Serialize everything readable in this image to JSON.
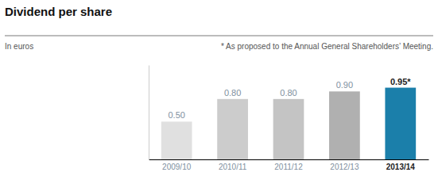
{
  "chart_data": {
    "type": "bar",
    "title": "Dividend per share",
    "subtitle": "In euros",
    "annotations": [
      "* As proposed to the Annual General Shareholders’ Meeting."
    ],
    "categories": [
      "2009/10",
      "2010/11",
      "2011/12",
      "2012/13",
      "2013/14"
    ],
    "values": [
      0.5,
      0.8,
      0.8,
      0.9,
      0.95
    ],
    "value_labels": [
      "0.50",
      "0.80",
      "0.80",
      "0.90",
      "0.95*"
    ],
    "colors": [
      "#e0e0e0",
      "#cccccc",
      "#c4c4c4",
      "#b0b0b0",
      "#1b7faa"
    ],
    "ylim": [
      0,
      1.25
    ],
    "data_labels": true,
    "tick_labels": "x",
    "grid": false
  }
}
